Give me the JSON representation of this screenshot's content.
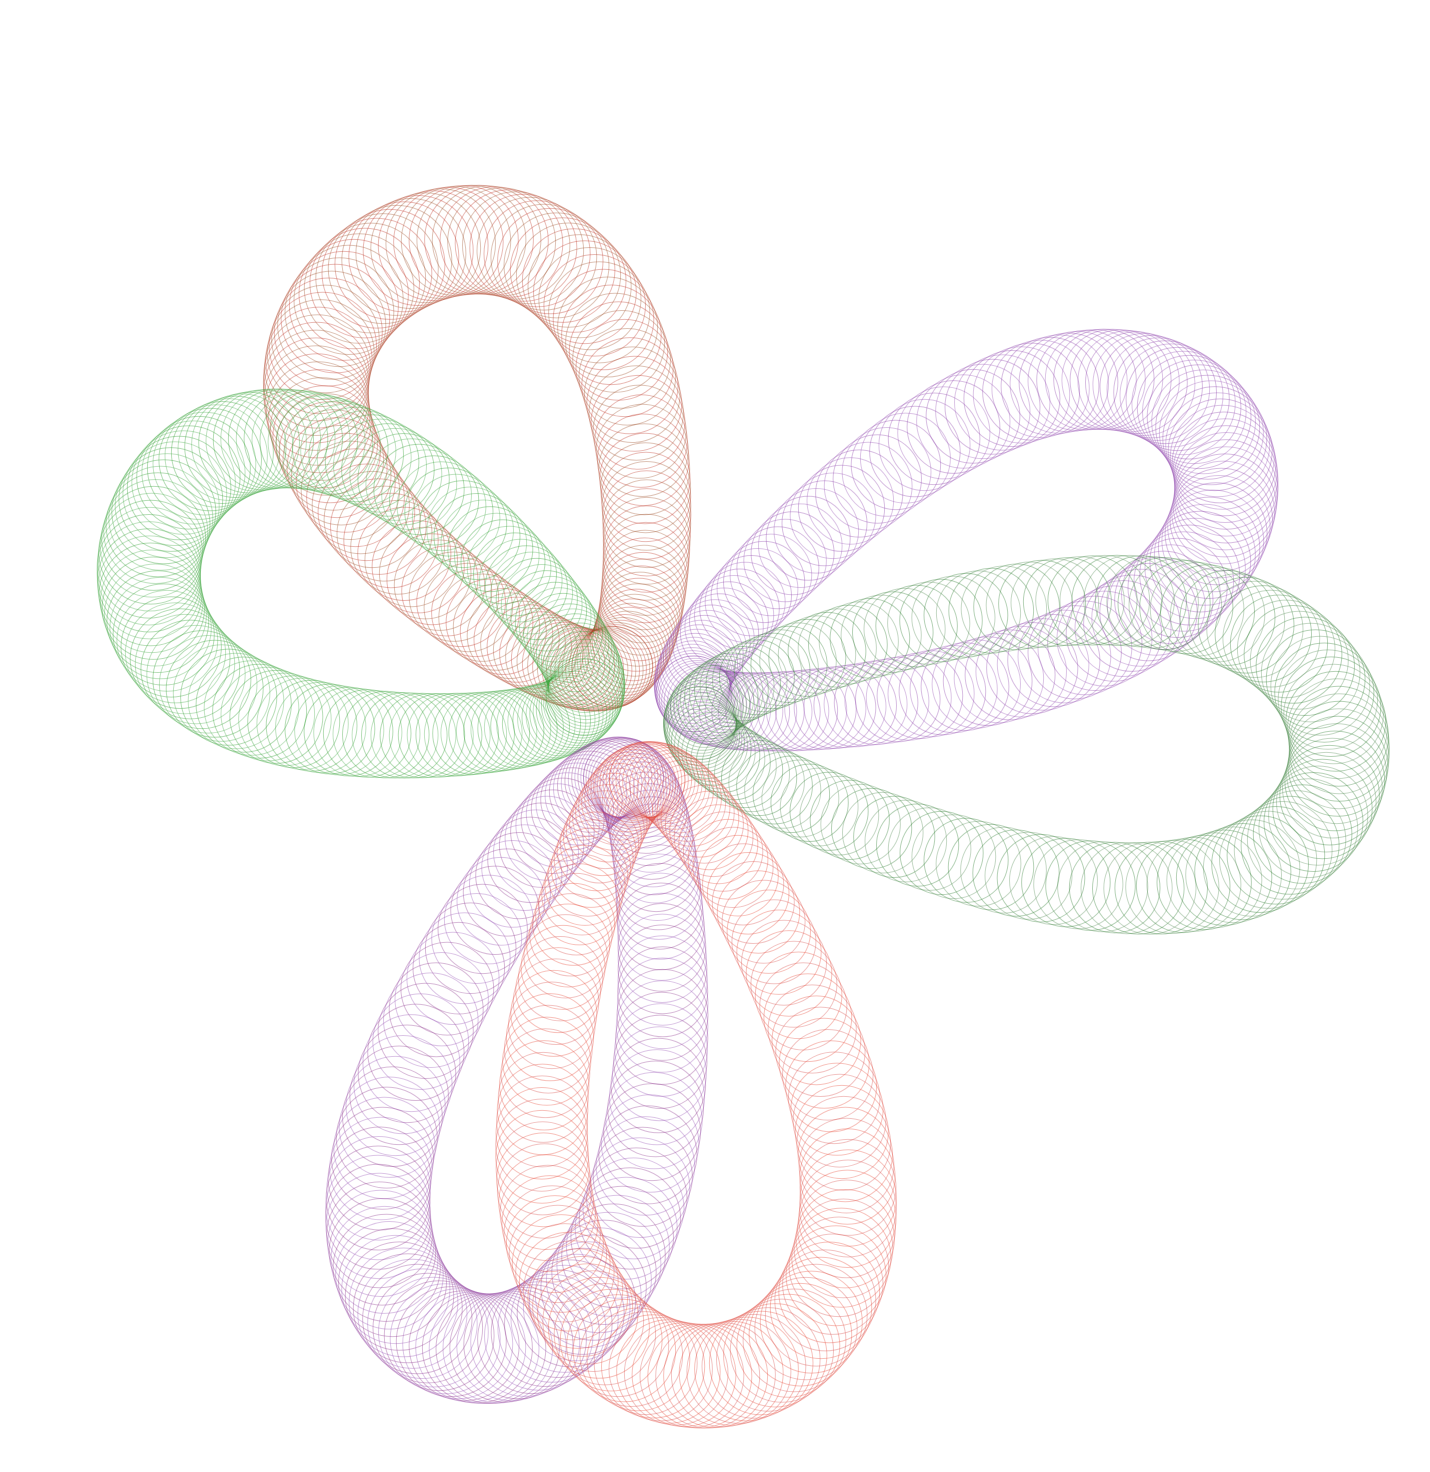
{
  "artwork": {
    "kind": "spirograph-trefoil",
    "background_color": "#ffffff",
    "lobes": [
      {
        "name": "upper-left-lobe",
        "colors": [
          "#a0522d",
          "#c0392b"
        ]
      },
      {
        "name": "left-lobe",
        "colors": [
          "#2e9e2e",
          "#4caf50"
        ]
      },
      {
        "name": "upper-right-lobe",
        "colors": [
          "#8e44ad",
          "#9b59b6"
        ]
      },
      {
        "name": "right-lobe",
        "colors": [
          "#2e7d32",
          "#5a8f5a"
        ]
      },
      {
        "name": "lower-left-lobe",
        "colors": [
          "#8e3a8e",
          "#9b59b6"
        ]
      },
      {
        "name": "lower-right-lobe",
        "colors": [
          "#d9534f",
          "#e74c3c"
        ]
      }
    ]
  }
}
